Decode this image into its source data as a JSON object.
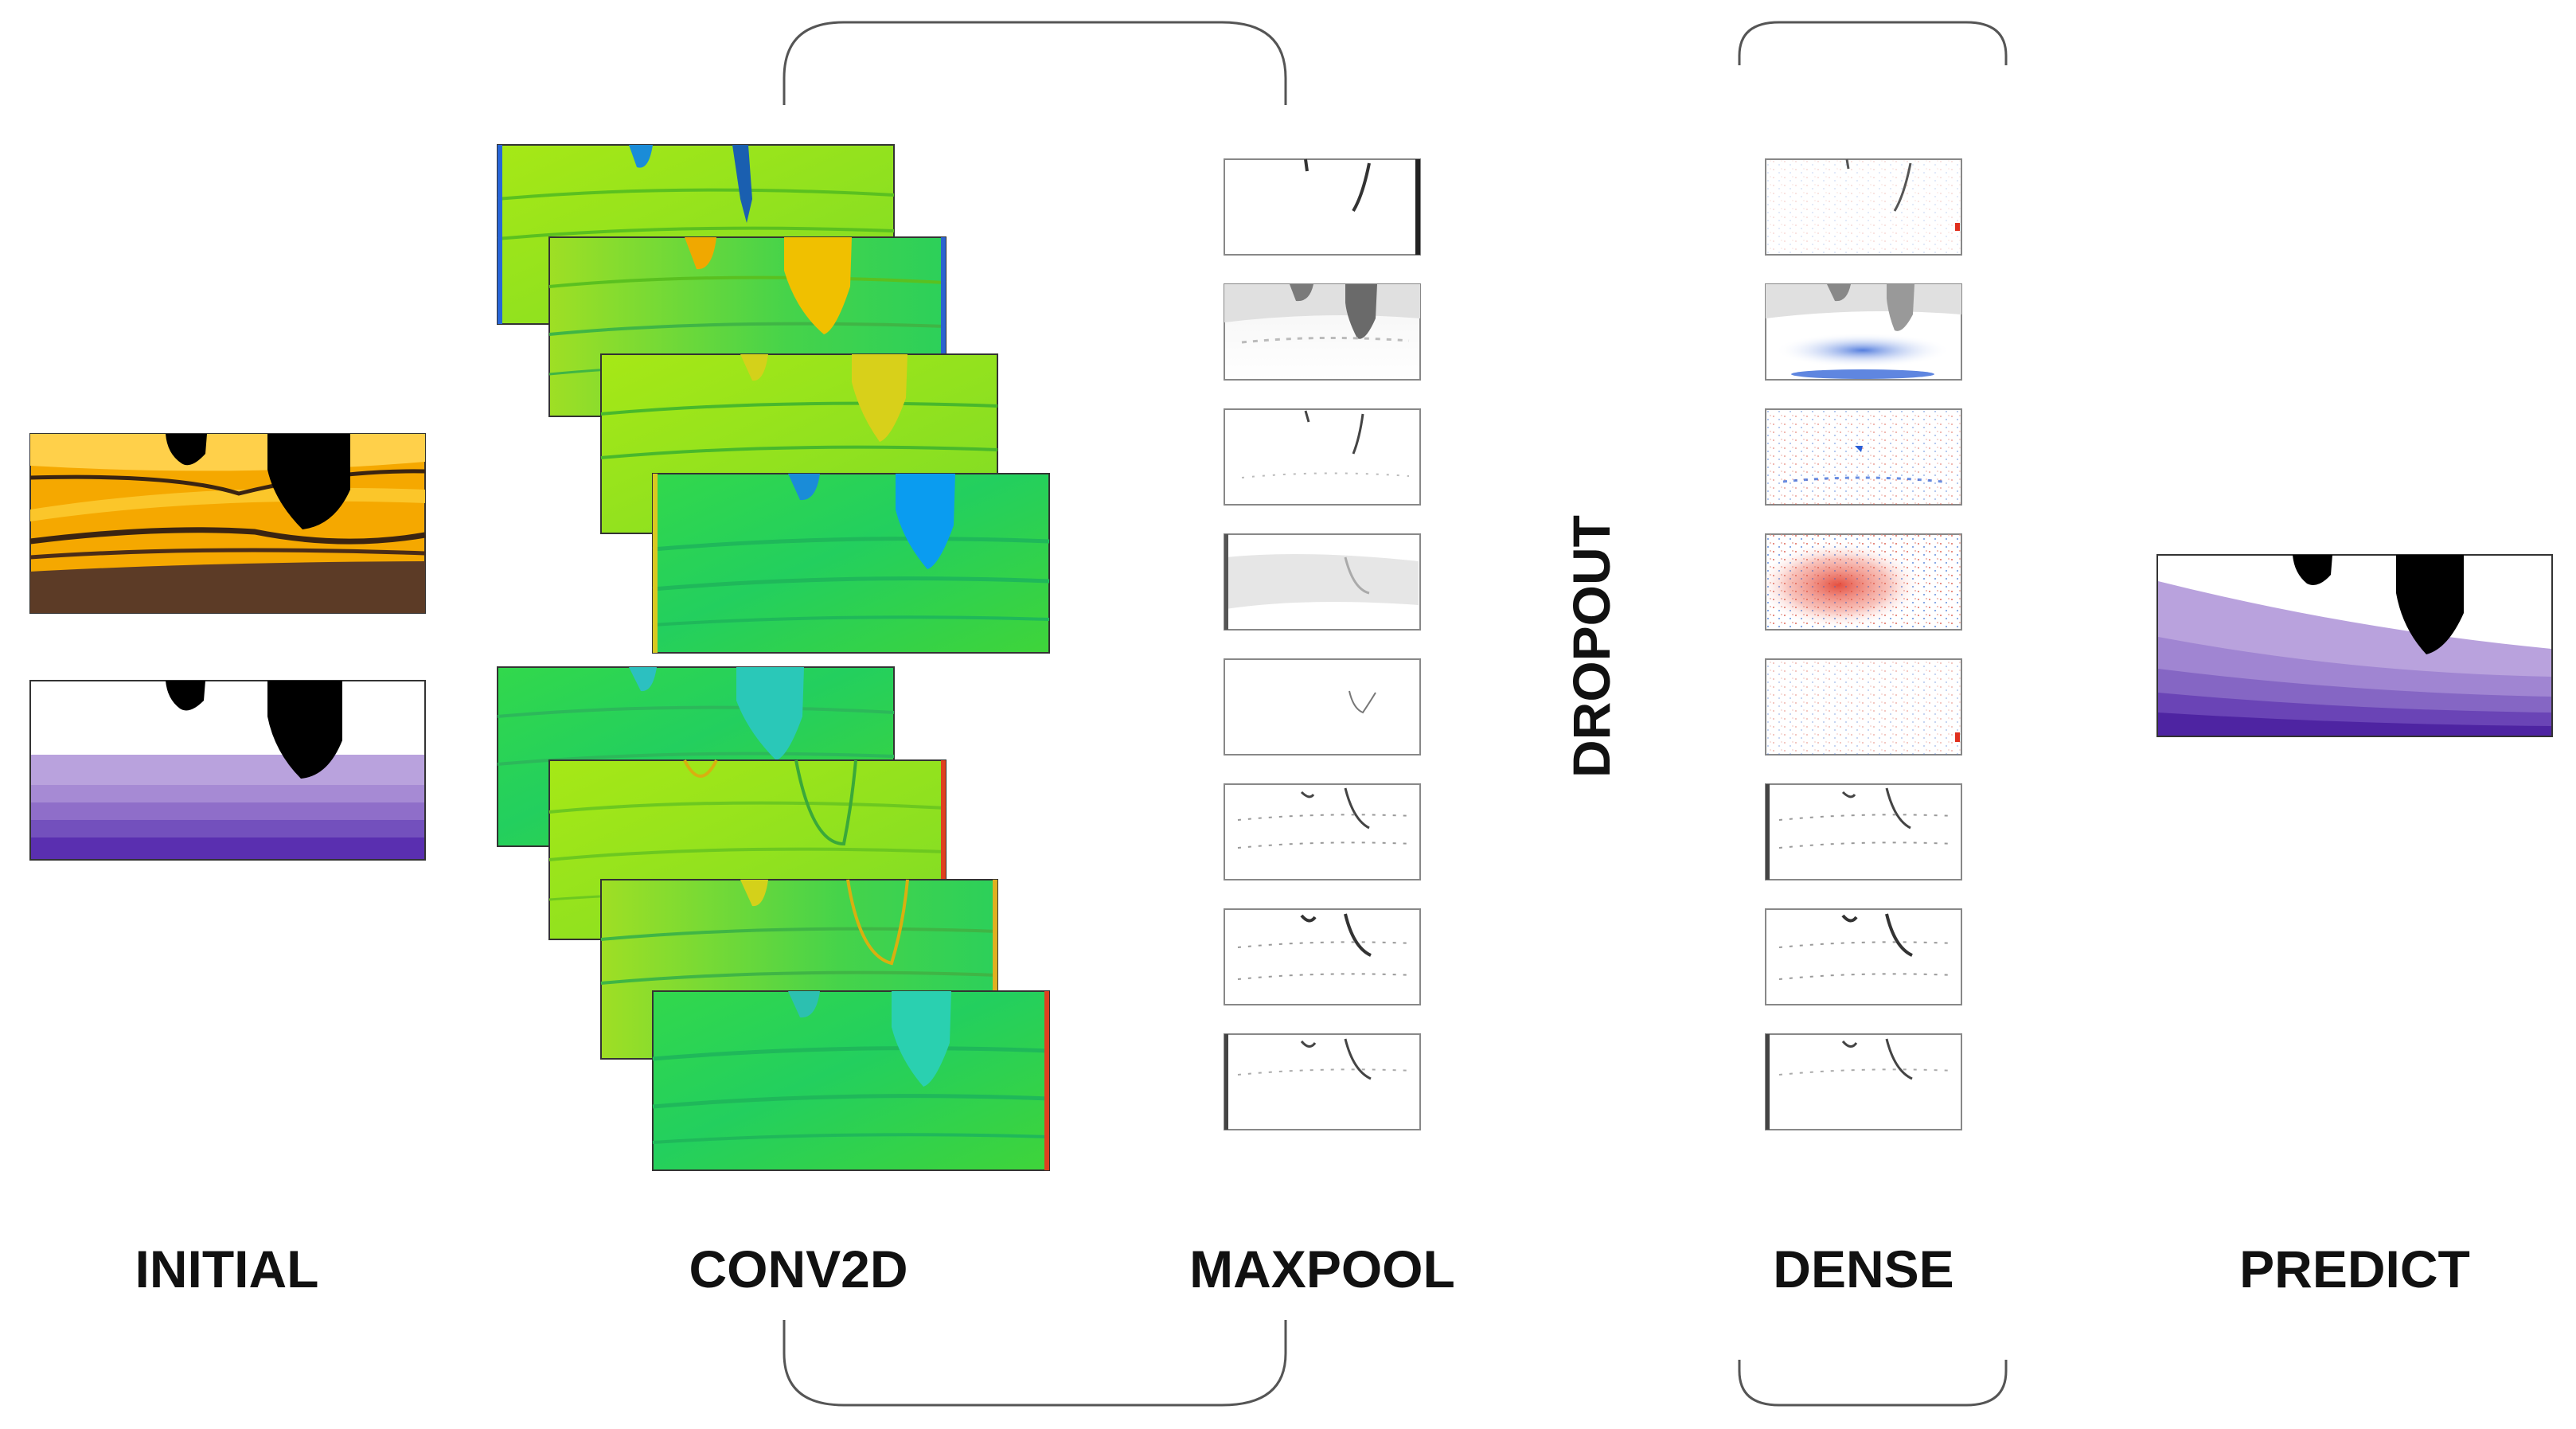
{
  "labels": {
    "initial": "INITIAL",
    "conv2d": "CONV2D",
    "maxpool": "MAXPOOL",
    "dropout": "DROPOUT",
    "dense": "DENSE",
    "predict": "PREDICT"
  },
  "colors": {
    "orange_base": "#f5a800",
    "orange_light": "#ffd04a",
    "orange_dark_band": "#5c3b26",
    "purple_top": "#b9a2dd",
    "purple_mid": "#8f6ec9",
    "purple_deep": "#5a2fb0",
    "purple_darkest": "#3d1a92",
    "green": "#1fd05a",
    "lime": "#9be81a",
    "blue_feature": "#0a9cf0",
    "yellow_feature": "#d4d11a",
    "dense_red": "#e0301e",
    "dense_blue": "#2a5ed6",
    "bracket": "#555555"
  }
}
